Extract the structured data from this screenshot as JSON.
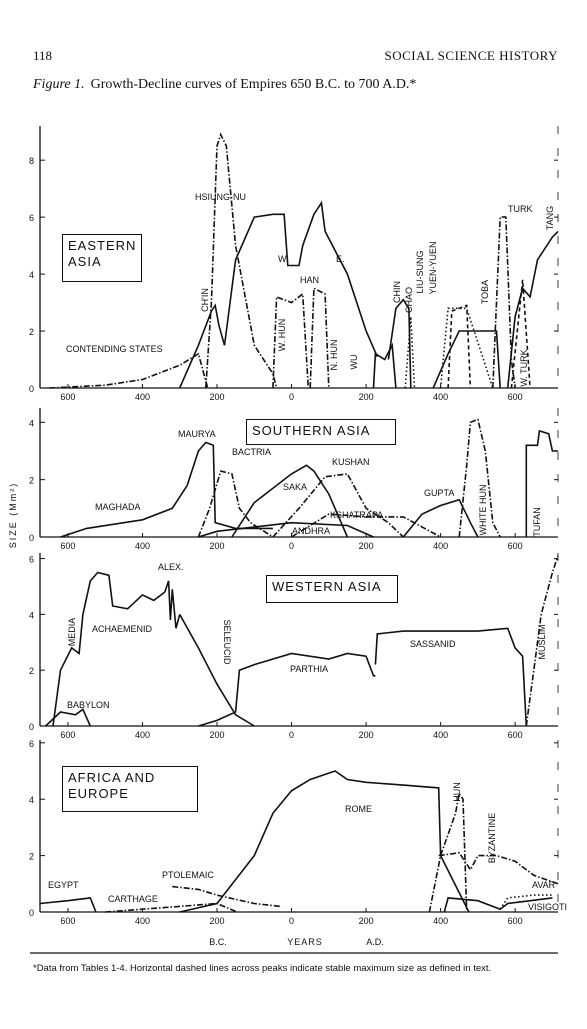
{
  "header": {
    "page": "118",
    "running_head": "SOCIAL SCIENCE HISTORY"
  },
  "caption": {
    "label": "Figure 1.",
    "text": "Growth-Decline curves of Empires 650 B.C. to 700 A.D.*"
  },
  "y_axis_label": "SIZE (Mm²)",
  "x_axis_labels": {
    "left": "B.C.",
    "center": "YEARS",
    "right": "A.D."
  },
  "footnote": "*Data from Tables 1-4. Horizontal dashed lines across peaks indicate stable maximum size as defined in text.",
  "chart_data": [
    {
      "type": "line",
      "title": "EASTERN ASIA",
      "xlim": [
        -675,
        715
      ],
      "ylim": [
        0,
        9.2
      ],
      "yticks": [
        0,
        2,
        4,
        6,
        8
      ],
      "xticks": [
        {
          "value": -600,
          "label": "600"
        },
        {
          "value": -400,
          "label": "400"
        },
        {
          "value": -200,
          "label": "200"
        },
        0,
        200,
        400,
        600
      ],
      "annotations": [
        "W.",
        "E."
      ],
      "series": [
        {
          "name": "CONTENDING STATES",
          "color": "#111",
          "style": "dashdot",
          "x": [
            -650,
            -500,
            -400,
            -300,
            -250,
            -225
          ],
          "values": [
            0,
            0.1,
            0.3,
            0.8,
            1.2,
            0
          ]
        },
        {
          "name": "CH'IN",
          "color": "#111",
          "style": "solid",
          "x": [
            -300,
            -250,
            -215,
            -205,
            -195,
            -180
          ],
          "values": [
            0,
            1.5,
            2.7,
            2.9,
            2.2,
            1.5
          ]
        },
        {
          "name": "HSIUNG-NU",
          "color": "#111",
          "style": "dashdot",
          "x": [
            -230,
            -215,
            -200,
            -190,
            -175,
            -150,
            -100,
            -50,
            -40
          ],
          "values": [
            0,
            3,
            8.5,
            8.9,
            8.5,
            5,
            1.5,
            0.5,
            0
          ]
        },
        {
          "name": "HAN",
          "color": "#111",
          "style": "solid",
          "x": [
            -180,
            -150,
            -100,
            -50,
            -20,
            -10,
            20,
            30,
            60,
            80,
            90,
            150,
            200,
            230
          ],
          "values": [
            1.5,
            4.5,
            6,
            6.1,
            6.1,
            4.3,
            4.3,
            5,
            6.1,
            6.5,
            5.5,
            4,
            2,
            1.1
          ]
        },
        {
          "name": "W. HUN",
          "color": "#111",
          "style": "dashdot",
          "x": [
            -50,
            -40,
            0,
            30,
            45
          ],
          "values": [
            0,
            3.2,
            3,
            3.3,
            0
          ]
        },
        {
          "name": "N. HUN",
          "color": "#111",
          "style": "dashdot",
          "x": [
            50,
            60,
            90,
            100
          ],
          "values": [
            0,
            3.5,
            3.3,
            0
          ]
        },
        {
          "name": "WU",
          "color": "#111",
          "style": "solid",
          "x": [
            220,
            225,
            250,
            270,
            280
          ],
          "values": [
            0,
            1.2,
            1,
            1.5,
            0
          ]
        },
        {
          "name": "CHIN",
          "color": "#111",
          "style": "solid",
          "x": [
            260,
            280,
            300,
            315,
            320
          ],
          "values": [
            1,
            2.8,
            3.1,
            2.8,
            0
          ]
        },
        {
          "name": "CHAO",
          "color": "#111",
          "style": "dotted",
          "x": [
            305,
            320,
            330
          ],
          "values": [
            0,
            2.5,
            0
          ]
        },
        {
          "name": "LIU-SUNG",
          "color": "#111",
          "style": "dashed",
          "x": [
            420,
            430,
            470,
            480
          ],
          "values": [
            0,
            2.7,
            2.9,
            0
          ]
        },
        {
          "name": "YUEN-YUEN",
          "color": "#111",
          "style": "dotted",
          "x": [
            400,
            420,
            470,
            540
          ],
          "values": [
            0,
            2.8,
            2.8,
            0
          ]
        },
        {
          "name": "TOBA",
          "color": "#111",
          "style": "solid",
          "x": [
            380,
            420,
            450,
            550,
            560
          ],
          "values": [
            0,
            1.2,
            2,
            2,
            0
          ]
        },
        {
          "name": "TURK",
          "color": "#111",
          "style": "dashdot",
          "x": [
            540,
            560,
            575,
            590,
            600
          ],
          "values": [
            0,
            6,
            6,
            1,
            0
          ]
        },
        {
          "name": "W. TURK",
          "color": "#111",
          "style": "dashed",
          "x": [
            590,
            620,
            640
          ],
          "values": [
            0,
            3.8,
            0
          ]
        },
        {
          "name": "TANG",
          "color": "#111",
          "style": "solid",
          "x": [
            580,
            600,
            620,
            640,
            660,
            700,
            715
          ],
          "values": [
            0,
            2.5,
            3.5,
            3.2,
            4.5,
            5.3,
            5.5
          ]
        }
      ]
    },
    {
      "type": "line",
      "title": "SOUTHERN ASIA",
      "xlim": [
        -675,
        715
      ],
      "ylim": [
        0,
        4.5
      ],
      "yticks": [
        0,
        2,
        4
      ],
      "xticks": [
        {
          "value": -600,
          "label": "600"
        },
        {
          "value": -400,
          "label": "400"
        },
        {
          "value": -200,
          "label": "200"
        },
        0,
        200,
        400,
        600
      ],
      "series": [
        {
          "name": "MAGHADA",
          "color": "#111",
          "style": "solid",
          "x": [
            -620,
            -550,
            -400,
            -320,
            -280
          ],
          "values": [
            0,
            0.3,
            0.6,
            1,
            1.8
          ]
        },
        {
          "name": "MAURYA",
          "color": "#111",
          "style": "solid",
          "x": [
            -280,
            -250,
            -230,
            -210,
            -205,
            -150,
            -50
          ],
          "values": [
            1.8,
            3,
            3.3,
            3.2,
            0.5,
            0.3,
            0.3
          ]
        },
        {
          "name": "BACTRIA",
          "color": "#111",
          "style": "dashdot",
          "x": [
            -250,
            -220,
            -190,
            -160,
            -140,
            -110,
            -50
          ],
          "values": [
            0,
            1,
            2.3,
            2.2,
            1,
            0.5,
            0
          ]
        },
        {
          "name": "SAKA",
          "color": "#111",
          "style": "solid",
          "x": [
            -160,
            -100,
            0,
            40,
            60,
            100,
            150
          ],
          "values": [
            0,
            1.2,
            2.2,
            2.5,
            2.3,
            1.5,
            0
          ]
        },
        {
          "name": "KUSHAN",
          "color": "#111",
          "style": "dashdot",
          "x": [
            -50,
            20,
            90,
            150,
            200,
            260,
            300
          ],
          "values": [
            0,
            1,
            2.1,
            2.2,
            1,
            0.5,
            0
          ]
        },
        {
          "name": "KSHATRAPA",
          "color": "#111",
          "style": "dashdot",
          "x": [
            0,
            100,
            200,
            300,
            400
          ],
          "values": [
            0,
            0.8,
            0.7,
            0.7,
            0
          ]
        },
        {
          "name": "ANDHRA",
          "color": "#111",
          "style": "solid",
          "x": [
            -250,
            -200,
            0,
            150,
            220
          ],
          "values": [
            0,
            0.2,
            0.5,
            0.4,
            0
          ]
        },
        {
          "name": "GUPTA",
          "color": "#111",
          "style": "solid",
          "x": [
            300,
            350,
            400,
            450,
            480,
            500
          ],
          "values": [
            0,
            0.8,
            1.1,
            1.3,
            0.5,
            0
          ]
        },
        {
          "name": "WHITE HUN",
          "color": "#111",
          "style": "dashdot",
          "x": [
            450,
            470,
            480,
            500,
            520,
            540,
            560
          ],
          "values": [
            0,
            2.5,
            4,
            4.1,
            3,
            0.5,
            0
          ]
        },
        {
          "name": "TUFAN",
          "color": "#111",
          "style": "solid",
          "x": [
            630,
            630,
            660,
            665,
            690,
            700,
            715
          ],
          "values": [
            0,
            3.2,
            3.2,
            3.7,
            3.6,
            3,
            3
          ]
        }
      ]
    },
    {
      "type": "line",
      "title": "WESTERN ASIA",
      "xlim": [
        -675,
        715
      ],
      "ylim": [
        0,
        6.2
      ],
      "yticks": [
        0,
        2,
        4,
        6
      ],
      "xticks": [
        {
          "value": -600,
          "label": "600"
        },
        {
          "value": -400,
          "label": "400"
        },
        {
          "value": -200,
          "label": "200"
        },
        0,
        200,
        400,
        600
      ],
      "series": [
        {
          "name": "BABYLON",
          "color": "#111",
          "style": "solid",
          "x": [
            -660,
            -620,
            -580,
            -560,
            -540
          ],
          "values": [
            0,
            0.5,
            0.4,
            0.6,
            0
          ]
        },
        {
          "name": "MEDIA",
          "color": "#111",
          "style": "solid",
          "x": [
            -640,
            -620,
            -590,
            -570,
            -560
          ],
          "values": [
            0,
            2,
            2.8,
            2.6,
            4
          ]
        },
        {
          "name": "ACHAEMENID",
          "color": "#111",
          "style": "solid",
          "x": [
            -560,
            -540,
            -520,
            -490,
            -480,
            -440,
            -400,
            -370,
            -340
          ],
          "values": [
            4,
            5.2,
            5.5,
            5.4,
            4.3,
            4.2,
            4.7,
            4.5,
            4.8
          ]
        },
        {
          "name": "ALEX.",
          "color": "#111",
          "style": "solid",
          "x": [
            -340,
            -330,
            -325,
            -320,
            -310,
            -300
          ],
          "values": [
            4.8,
            5.2,
            3.8,
            4.9,
            3.5,
            4
          ]
        },
        {
          "name": "SELEUCID",
          "color": "#111",
          "style": "solid",
          "x": [
            -300,
            -250,
            -200,
            -150,
            -100
          ],
          "values": [
            4,
            2.8,
            1.5,
            0.4,
            0
          ]
        },
        {
          "name": "PARTHIA",
          "color": "#111",
          "style": "solid",
          "x": [
            -250,
            -200,
            -150,
            -140,
            -100,
            0,
            100,
            150,
            200,
            220,
            225
          ],
          "values": [
            0,
            0.2,
            0.5,
            2,
            2.2,
            2.6,
            2.4,
            2.6,
            2.5,
            1.8,
            1.8
          ]
        },
        {
          "name": "SASSANID",
          "color": "#111",
          "style": "solid",
          "x": [
            225,
            230,
            300,
            500,
            580,
            600,
            620,
            630
          ],
          "values": [
            2.2,
            3.3,
            3.4,
            3.4,
            3.5,
            2.8,
            2.5,
            0
          ]
        },
        {
          "name": "MUSLIM",
          "color": "#111",
          "style": "dashdot",
          "x": [
            630,
            650,
            670,
            700,
            715
          ],
          "values": [
            0,
            2,
            4,
            5.5,
            6.1
          ]
        }
      ]
    },
    {
      "type": "line",
      "title": "AFRICA AND EUROPE",
      "xlim": [
        -675,
        715
      ],
      "ylim": [
        0,
        6.1
      ],
      "yticks": [
        0,
        2,
        4,
        6
      ],
      "xticks": [
        {
          "value": -600,
          "label": "600"
        },
        {
          "value": -400,
          "label": "400"
        },
        {
          "value": -200,
          "label": "200"
        },
        0,
        200,
        400,
        600
      ],
      "series": [
        {
          "name": "EGYPT",
          "color": "#111",
          "style": "solid",
          "x": [
            -675,
            -600,
            -540,
            -525
          ],
          "values": [
            0.3,
            0.4,
            0.5,
            0
          ]
        },
        {
          "name": "CARTHAGE",
          "color": "#111",
          "style": "dashdot",
          "x": [
            -500,
            -400,
            -300,
            -200,
            -146
          ],
          "values": [
            0,
            0.1,
            0.2,
            0.3,
            0
          ]
        },
        {
          "name": "PTOLEMAIC",
          "color": "#111",
          "style": "dashdot",
          "x": [
            -320,
            -250,
            -200,
            -100,
            -30
          ],
          "values": [
            0.9,
            0.8,
            0.6,
            0.3,
            0.2
          ]
        },
        {
          "name": "ROME",
          "color": "#111",
          "style": "solid",
          "x": [
            -300,
            -200,
            -100,
            -50,
            0,
            50,
            117,
            150,
            200,
            300,
            395,
            400,
            476
          ],
          "values": [
            0,
            0.3,
            2,
            3.5,
            4.3,
            4.7,
            5,
            4.7,
            4.6,
            4.5,
            4.4,
            2,
            0
          ]
        },
        {
          "name": "HUN",
          "color": "#111",
          "style": "dashdot",
          "x": [
            370,
            400,
            440,
            450,
            460,
            470
          ],
          "values": [
            0,
            2,
            3.5,
            4.2,
            4,
            0
          ]
        },
        {
          "name": "BYZANTINE",
          "color": "#111",
          "style": "dashdot",
          "x": [
            395,
            450,
            480,
            500,
            550,
            600,
            650,
            715
          ],
          "values": [
            2,
            2.1,
            1.5,
            2,
            2,
            1.8,
            1.3,
            1
          ]
        },
        {
          "name": "AVAR",
          "color": "#111",
          "style": "dotted",
          "x": [
            560,
            580,
            650,
            700
          ],
          "values": [
            0.1,
            0.5,
            0.6,
            0.6
          ]
        },
        {
          "name": "VISIGOTI",
          "color": "#111",
          "style": "solid",
          "x": [
            410,
            420,
            500,
            560,
            580,
            700
          ],
          "values": [
            0,
            0.5,
            0.4,
            0.1,
            0.3,
            0.5
          ]
        }
      ]
    }
  ]
}
